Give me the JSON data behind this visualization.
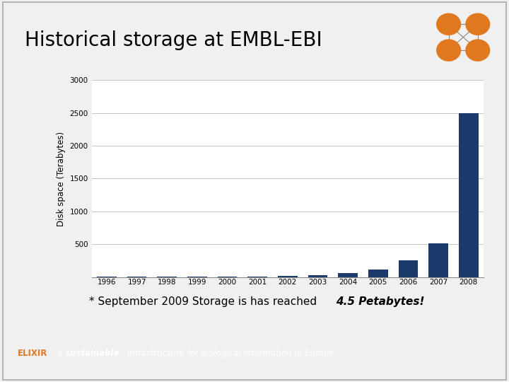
{
  "title": "Historical storage at EMBL-EBI",
  "ylabel": "Disk space (Terabytes)",
  "years": [
    1996,
    1997,
    1998,
    1999,
    2000,
    2001,
    2002,
    2003,
    2004,
    2005,
    2006,
    2007,
    2008
  ],
  "values": [
    2,
    2,
    2,
    2,
    2,
    5,
    15,
    30,
    60,
    110,
    250,
    510,
    2500
  ],
  "bar_color": "#1a3a6b",
  "ylim": [
    0,
    3000
  ],
  "yticks": [
    0,
    500,
    1000,
    1500,
    2000,
    2500,
    3000
  ],
  "slide_bg": "#f0f0f0",
  "plot_bg": "#ffffff",
  "slide_white": "#ffffff",
  "title_color": "#000000",
  "title_fontsize": 20,
  "annotation_text": "* September 2009 Storage is has reached ",
  "annotation_bold": "4.5 Petabytes!",
  "footer_text": "ELIXIR",
  "footer_rest": "  a ",
  "footer_bold": "sustainable",
  "footer_end": " infrastructure for biological information in Europe.",
  "footer_bg": "#808080",
  "footer_orange": "#e07820",
  "header_line_color": "#c8a030",
  "logo_bg": "#3a3a3a",
  "logo_dot_color": "#e07820"
}
